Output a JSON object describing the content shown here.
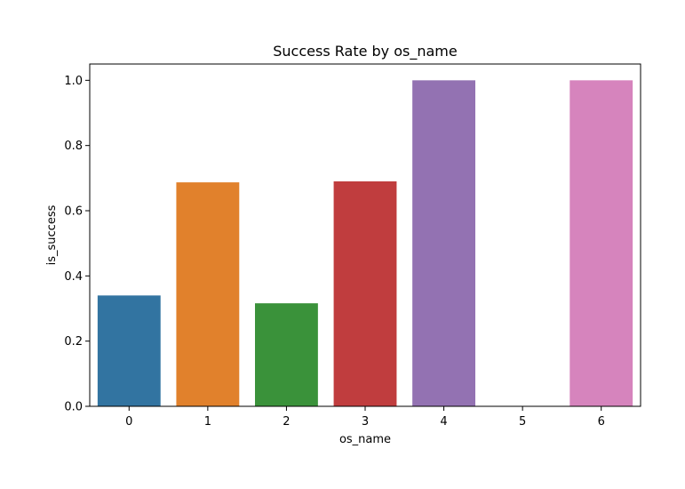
{
  "chart_data": {
    "type": "bar",
    "title": "Success Rate by os_name",
    "xlabel": "os_name",
    "ylabel": "is_success",
    "categories": [
      "0",
      "1",
      "2",
      "3",
      "4",
      "5",
      "6"
    ],
    "values": [
      0.34,
      0.687,
      0.316,
      0.69,
      1.0,
      0.0,
      1.0
    ],
    "colors": [
      "#3274a1",
      "#e1812c",
      "#3a923a",
      "#c03d3e",
      "#9372b2",
      "#845b53",
      "#d684bd"
    ],
    "ylim": [
      0,
      1.05
    ],
    "yticks": [
      0.0,
      0.2,
      0.4,
      0.6,
      0.8,
      1.0
    ],
    "ytick_labels": [
      "0.0",
      "0.2",
      "0.4",
      "0.6",
      "0.8",
      "1.0"
    ],
    "grid": false,
    "legend": "none"
  }
}
